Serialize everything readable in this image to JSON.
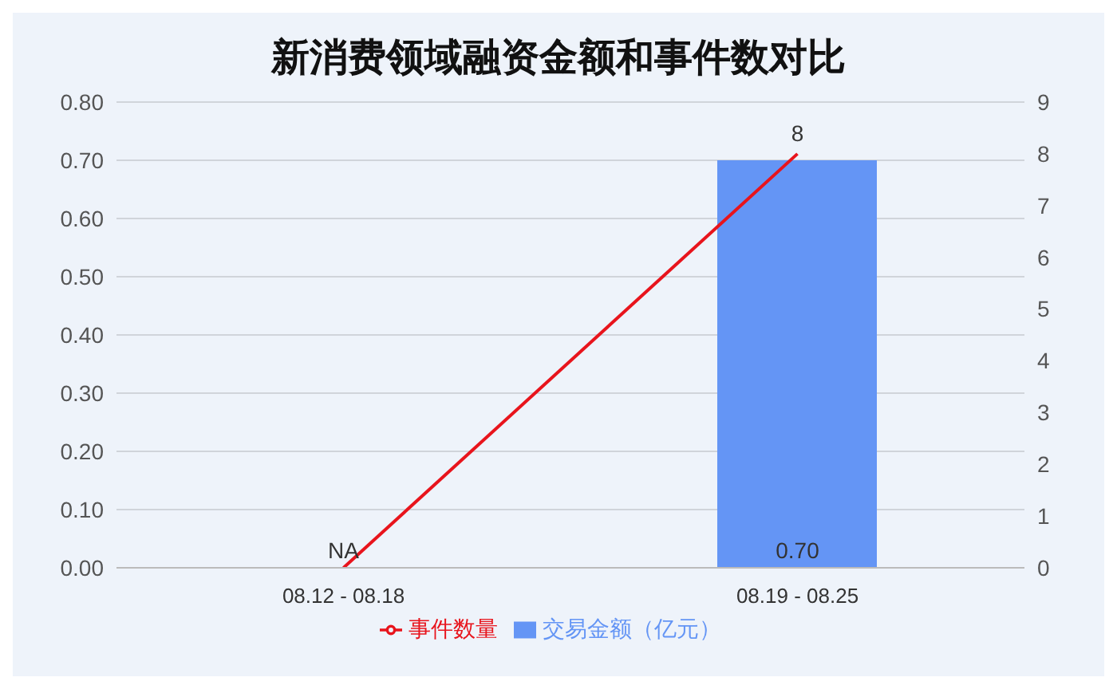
{
  "chart_data": {
    "type": "bar",
    "title": "新消费领域融资金额和事件数对比",
    "categories": [
      "08.12 - 08.18",
      "08.19 - 08.25"
    ],
    "series": [
      {
        "name": "交易金额（亿元）",
        "color": "#6495f5",
        "values": [
          null,
          0.7
        ],
        "value_labels": [
          "NA",
          "0.70"
        ]
      },
      {
        "name": "事件数量",
        "type": "line",
        "axis": "y2",
        "color": "#e8141c",
        "values": [
          0,
          8
        ],
        "value_labels": [
          null,
          "8"
        ],
        "marker": "none"
      }
    ],
    "ylim": [
      0,
      0.8
    ],
    "yticks": [
      {
        "value": 0,
        "label": "0.00"
      },
      {
        "value": 0.1,
        "label": "0.10"
      },
      {
        "value": 0.2,
        "label": "0.20"
      },
      {
        "value": 0.3,
        "label": "0.30"
      },
      {
        "value": 0.4,
        "label": "0.40"
      },
      {
        "value": 0.5,
        "label": "0.50"
      },
      {
        "value": 0.6,
        "label": "0.60"
      },
      {
        "value": 0.7,
        "label": "0.70"
      },
      {
        "value": 0.8,
        "label": "0.80"
      }
    ],
    "y2lim": [
      0,
      9
    ],
    "y2ticks": [
      0,
      1,
      2,
      3,
      4,
      5,
      6,
      7,
      8,
      9
    ],
    "grid": "y",
    "legend": "bottom"
  }
}
